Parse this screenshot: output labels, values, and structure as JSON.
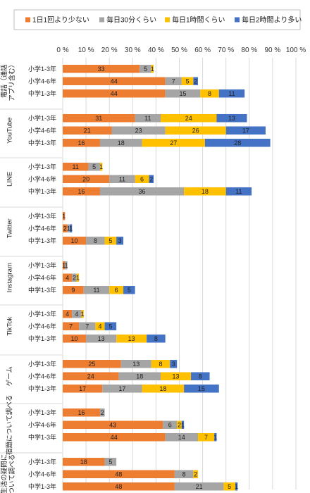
{
  "chart_data": {
    "type": "bar",
    "orientation": "horizontal",
    "stacked": true,
    "xlim": [
      0,
      100
    ],
    "x_ticks": [
      "0 %",
      "10 %",
      "20 %",
      "30 %",
      "40 %",
      "50 %",
      "60 %",
      "70 %",
      "80 %",
      "90 %",
      "100 %"
    ],
    "grid": true,
    "legend_position": "top",
    "series": [
      {
        "name": "1日1回より少ない",
        "color": "#ED7D31"
      },
      {
        "name": "毎日30分くらい",
        "color": "#A5A5A5"
      },
      {
        "name": "毎日1時間くらい",
        "color": "#FFC000"
      },
      {
        "name": "毎日2時間より多い",
        "color": "#4472C4"
      }
    ],
    "groups": [
      {
        "label": "電話（通話アプリ含む）",
        "rows": [
          {
            "category": "小学1-3年",
            "values": [
              33,
              5,
              1,
              0
            ]
          },
          {
            "category": "小学4-6年",
            "values": [
              44,
              7,
              5,
              2
            ]
          },
          {
            "category": "中学1-3年",
            "values": [
              44,
              15,
              8,
              11
            ]
          }
        ]
      },
      {
        "label": "YouTube",
        "rows": [
          {
            "category": "小学1-3年",
            "values": [
              31,
              11,
              24,
              13
            ]
          },
          {
            "category": "小学4-6年",
            "values": [
              21,
              23,
              26,
              17
            ]
          },
          {
            "category": "中学1-3年",
            "values": [
              16,
              18,
              27,
              28
            ]
          }
        ]
      },
      {
        "label": "LINE",
        "rows": [
          {
            "category": "小学1-3年",
            "values": [
              11,
              5,
              1,
              0
            ]
          },
          {
            "category": "小学4-6年",
            "values": [
              20,
              11,
              6,
              2
            ]
          },
          {
            "category": "中学1-3年",
            "values": [
              16,
              36,
              18,
              11
            ]
          }
        ]
      },
      {
        "label": "Twitter",
        "rows": [
          {
            "category": "小学1-3年",
            "values": [
              1,
              0,
              0,
              0
            ]
          },
          {
            "category": "小学4-6年",
            "values": [
              2,
              1,
              0,
              1
            ]
          },
          {
            "category": "中学1-3年",
            "values": [
              10,
              8,
              5,
              3
            ]
          }
        ]
      },
      {
        "label": "Instagram",
        "rows": [
          {
            "category": "小学1-3年",
            "values": [
              1,
              1,
              0,
              0
            ]
          },
          {
            "category": "小学4-6年",
            "values": [
              4,
              2,
              1,
              0
            ]
          },
          {
            "category": "中学1-3年",
            "values": [
              9,
              11,
              6,
              5
            ]
          }
        ]
      },
      {
        "label": "TikTok",
        "rows": [
          {
            "category": "小学1-3年",
            "values": [
              4,
              4,
              1,
              0
            ]
          },
          {
            "category": "小学4-6年",
            "values": [
              7,
              7,
              4,
              5
            ]
          },
          {
            "category": "中学1-3年",
            "values": [
              10,
              13,
              13,
              8
            ]
          }
        ]
      },
      {
        "label": "ゲーム",
        "rows": [
          {
            "category": "小学1-3年",
            "values": [
              25,
              13,
              8,
              3
            ]
          },
          {
            "category": "小学4-6年",
            "values": [
              24,
              18,
              13,
              8
            ]
          },
          {
            "category": "中学1-3年",
            "values": [
              17,
              17,
              18,
              15
            ]
          }
        ]
      },
      {
        "label": "宿題について調べる",
        "rows": [
          {
            "category": "小学1-3年",
            "values": [
              16,
              2,
              0,
              0
            ]
          },
          {
            "category": "小学4-6年",
            "values": [
              43,
              6,
              2,
              1
            ]
          },
          {
            "category": "中学1-3年",
            "values": [
              44,
              14,
              7,
              1
            ]
          }
        ]
      },
      {
        "label": "生活の疑問について調べる",
        "rows": [
          {
            "category": "小学1-3年",
            "values": [
              18,
              5,
              0,
              0
            ]
          },
          {
            "category": "小学4-6年",
            "values": [
              48,
              8,
              2,
              0
            ]
          },
          {
            "category": "中学1-3年",
            "values": [
              48,
              21,
              5,
              1
            ]
          }
        ]
      }
    ]
  }
}
